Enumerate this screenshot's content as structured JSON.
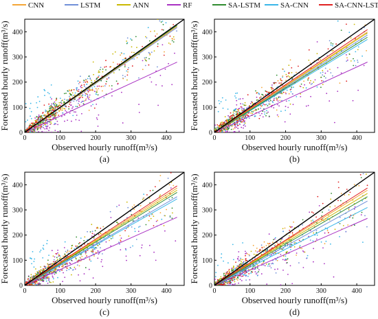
{
  "legend": {
    "placement": "top",
    "entries": [
      {
        "name": "CNN",
        "color": "#f4a535"
      },
      {
        "name": "LSTM",
        "color": "#6f8fd8"
      },
      {
        "name": "ANN",
        "color": "#c9b800"
      },
      {
        "name": "RF",
        "color": "#a82fc2"
      },
      {
        "name": "SA-LSTM",
        "color": "#2e8b2e"
      },
      {
        "name": "SA-CNN",
        "color": "#38b6e8"
      },
      {
        "name": "SA-CNN-LSTM",
        "color": "#e02020"
      }
    ]
  },
  "identity_line_color": "#000000",
  "chart_data": [
    {
      "type": "scatter",
      "panel_label": "(a)",
      "xlabel": "Observed hourly runoff(m³/s)",
      "ylabel": "Forecasted hourly runoff(m³/s)",
      "xlim": [
        0,
        450
      ],
      "ylim": [
        0,
        450
      ],
      "xticks": [
        0,
        100,
        200,
        300,
        400
      ],
      "yticks": [
        0,
        100,
        200,
        300,
        400
      ],
      "grid": false,
      "fit_slopes": {
        "CNN": 0.98,
        "LSTM": 0.97,
        "ANN": 0.99,
        "RF": 0.65,
        "SA-LSTM": 0.99,
        "SA-CNN": 0.99,
        "SA-CNN-LSTM": 1.0
      }
    },
    {
      "type": "scatter",
      "panel_label": "(b)",
      "xlabel": "Observed hourly runoff(m³/s)",
      "ylabel": "Forecasted hourly runoff(m³/s)",
      "xlim": [
        0,
        450
      ],
      "ylim": [
        0,
        450
      ],
      "xticks": [
        0,
        100,
        200,
        300,
        400
      ],
      "yticks": [
        0,
        100,
        200,
        300,
        400
      ],
      "grid": false,
      "fit_slopes": {
        "CNN": 0.93,
        "LSTM": 0.9,
        "ANN": 0.92,
        "RF": 0.65,
        "SA-LSTM": 0.88,
        "SA-CNN": 0.86,
        "SA-CNN-LSTM": 0.95
      }
    },
    {
      "type": "scatter",
      "panel_label": "(c)",
      "xlabel": "Observed hourly runoff(m³/s)",
      "ylabel": "Forecasted hourly runoff(m³/s)",
      "xlim": [
        0,
        450
      ],
      "ylim": [
        0,
        450
      ],
      "xticks": [
        0,
        100,
        200,
        300,
        400
      ],
      "yticks": [
        0,
        100,
        200,
        300,
        400
      ],
      "grid": false,
      "fit_slopes": {
        "CNN": 0.9,
        "LSTM": 0.82,
        "ANN": 0.88,
        "RF": 0.63,
        "SA-LSTM": 0.86,
        "SA-CNN": 0.8,
        "SA-CNN-LSTM": 0.92
      }
    },
    {
      "type": "scatter",
      "panel_label": "(d)",
      "xlabel": "Observed hourly runoff(m³/s)",
      "ylabel": "Forecasted hourly runoff(m³/s)",
      "xlim": [
        0,
        450
      ],
      "ylim": [
        0,
        450
      ],
      "xticks": [
        0,
        100,
        200,
        300,
        400
      ],
      "yticks": [
        0,
        100,
        200,
        300,
        400
      ],
      "grid": false,
      "fit_slopes": {
        "CNN": 0.88,
        "LSTM": 0.78,
        "ANN": 0.85,
        "RF": 0.62,
        "SA-LSTM": 0.82,
        "SA-CNN": 0.72,
        "SA-CNN-LSTM": 0.9
      }
    }
  ]
}
